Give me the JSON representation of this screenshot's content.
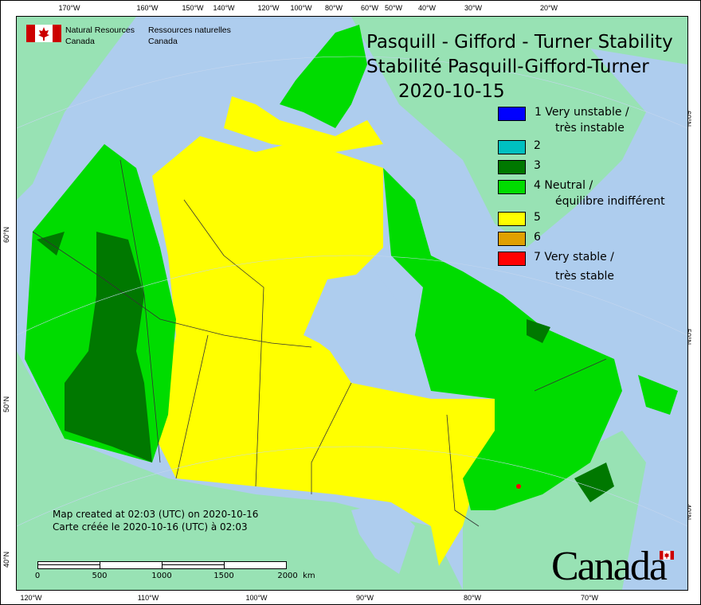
{
  "header": {
    "org_en": [
      "Natural Resources",
      "Canada"
    ],
    "org_fr": [
      "Ressources naturelles",
      "Canada"
    ],
    "title_en": "Pasquill - Gifford - Turner Stability",
    "title_fr": "Stabilité Pasquill-Gifford-Turner",
    "date": "2020-10-15"
  },
  "legend": [
    {
      "label": "1 Very unstable /",
      "label2": "très instable",
      "color": "#0000ff"
    },
    {
      "label": "2",
      "label2": "",
      "color": "#00c0c0"
    },
    {
      "label": "3",
      "label2": "",
      "color": "#007800"
    },
    {
      "label": "4 Neutral /",
      "label2": "équilibre indifférent",
      "color": "#00dc00"
    },
    {
      "label": "5",
      "label2": "",
      "color": "#ffff00"
    },
    {
      "label": "6",
      "label2": "",
      "color": "#e0a000"
    },
    {
      "label": "7 Very stable /",
      "label2": "très stable",
      "color": "#ff0000"
    }
  ],
  "credit": {
    "en": "Map created at 02:03 (UTC) on 2020-10-16",
    "fr": "Carte créée le 2020-10-16 (UTC) à 02:03"
  },
  "scale": {
    "labels": [
      "0",
      "500",
      "1000",
      "1500",
      "2000  km"
    ]
  },
  "axes": {
    "top": [
      "170°W",
      "160°W",
      "150°W",
      "140°W",
      "120°W",
      "100°W",
      "80°W",
      "60°W",
      "50°W",
      "40°W",
      "30°W",
      "20°W"
    ],
    "bottom": [
      "120°W",
      "110°W",
      "100°W",
      "90°W",
      "80°W",
      "70°W"
    ],
    "left": [
      "60°N",
      "50°N",
      "40°N"
    ],
    "right": [
      "60°N",
      "50°N",
      "40°N"
    ]
  },
  "wordmark": "Canada",
  "colors": {
    "water": "#aecdee",
    "other_land": "#98e2b4"
  }
}
